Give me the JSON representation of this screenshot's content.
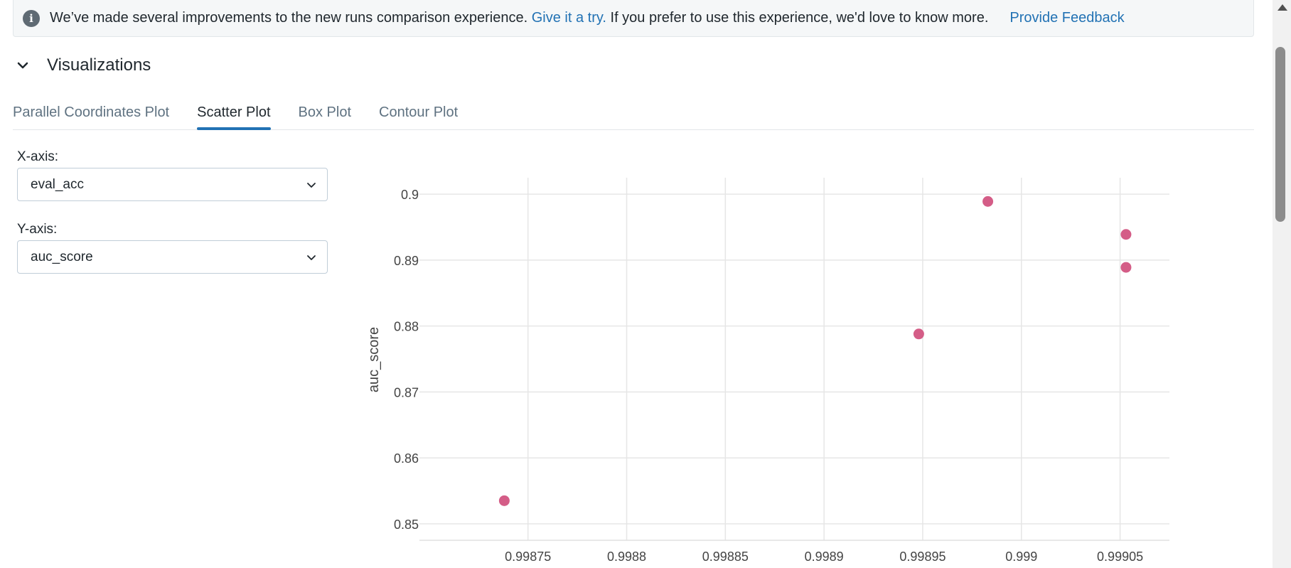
{
  "banner": {
    "message": "We’ve made several improvements to the new runs comparison experience.",
    "link_text": "Give it a try.",
    "message2": "If you prefer to use this experience, we'd love to know more.",
    "feedback_label": "Provide Feedback"
  },
  "section": {
    "title": "Visualizations"
  },
  "tabs": [
    {
      "label": "Parallel Coordinates Plot"
    },
    {
      "label": "Scatter Plot"
    },
    {
      "label": "Box Plot"
    },
    {
      "label": "Contour Plot"
    }
  ],
  "controls": {
    "x_label": "X-axis:",
    "x_value": "eval_acc",
    "y_label": "Y-axis:",
    "y_value": "auc_score"
  },
  "colors": {
    "accent": "#2272b4",
    "point": "#d45d87"
  },
  "chart_data": {
    "type": "scatter",
    "xlabel": "eval_acc",
    "ylabel": "auc_score",
    "xlim": [
      0.998695,
      0.999075
    ],
    "ylim": [
      0.8475,
      0.9025
    ],
    "x_ticks": [
      0.99875,
      0.9988,
      0.99885,
      0.9989,
      0.99895,
      0.999,
      0.99905
    ],
    "x_tick_labels": [
      "0.99875",
      "0.9988",
      "0.99885",
      "0.9989",
      "0.99895",
      "0.999",
      "0.99905"
    ],
    "y_ticks": [
      0.85,
      0.86,
      0.87,
      0.88,
      0.89,
      0.9
    ],
    "y_tick_labels": [
      "0.85",
      "0.86",
      "0.87",
      "0.88",
      "0.89",
      "0.9"
    ],
    "points": [
      {
        "x": 0.998738,
        "y": 0.8535
      },
      {
        "x": 0.998948,
        "y": 0.8788
      },
      {
        "x": 0.998983,
        "y": 0.8989
      },
      {
        "x": 0.999053,
        "y": 0.8939
      },
      {
        "x": 0.999053,
        "y": 0.8889
      }
    ]
  }
}
